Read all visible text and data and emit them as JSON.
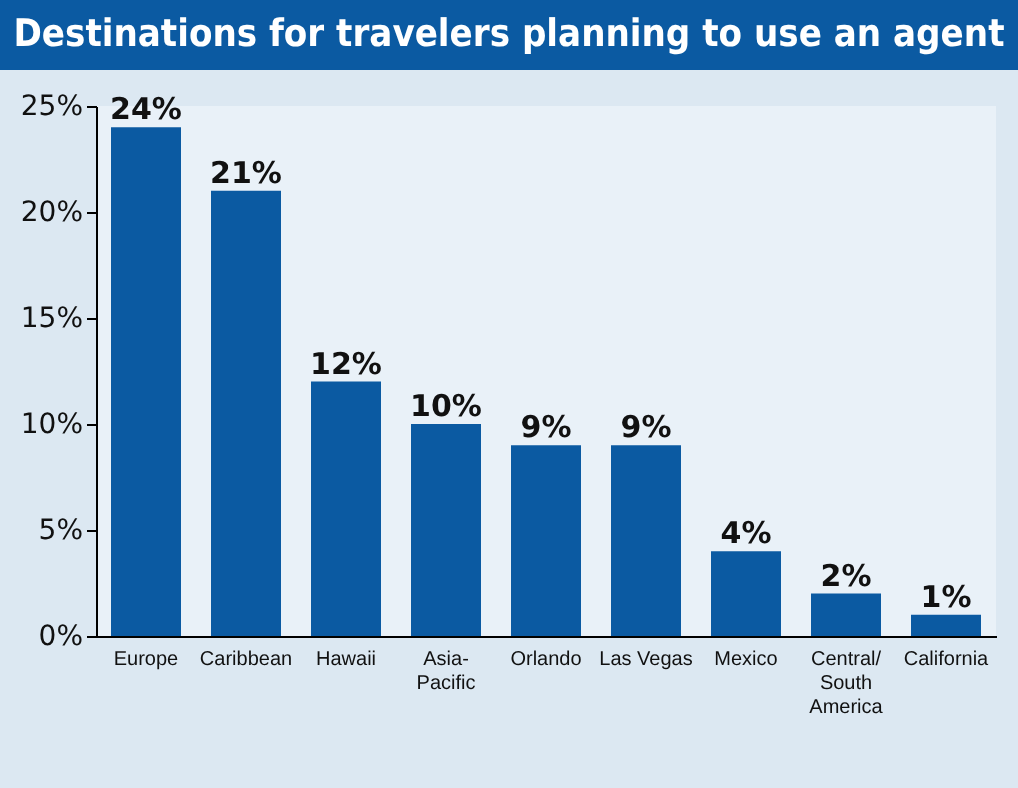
{
  "chart_data": {
    "type": "bar",
    "title": "Destinations for travelers planning to use an agent",
    "categories": [
      "Europe",
      "Caribbean",
      "Hawaii",
      "Asia-Pacific",
      "Orlando",
      "Las Vegas",
      "Mexico",
      "Central/South America",
      "California"
    ],
    "values": [
      24,
      21,
      12,
      10,
      9,
      9,
      4,
      2,
      1
    ],
    "value_labels": [
      "24%",
      "21%",
      "12%",
      "10%",
      "9%",
      "9%",
      "4%",
      "2%",
      "1%"
    ],
    "color": "#0b5aa2",
    "ylim": [
      0,
      25
    ],
    "yticks": [
      {
        "value": 0,
        "label": "0%"
      },
      {
        "value": 5,
        "label": "5%"
      },
      {
        "value": 10,
        "label": "10%"
      },
      {
        "value": 15,
        "label": "15%"
      },
      {
        "value": 20,
        "label": "20%"
      },
      {
        "value": 25,
        "label": "25%"
      }
    ],
    "grid": false
  }
}
